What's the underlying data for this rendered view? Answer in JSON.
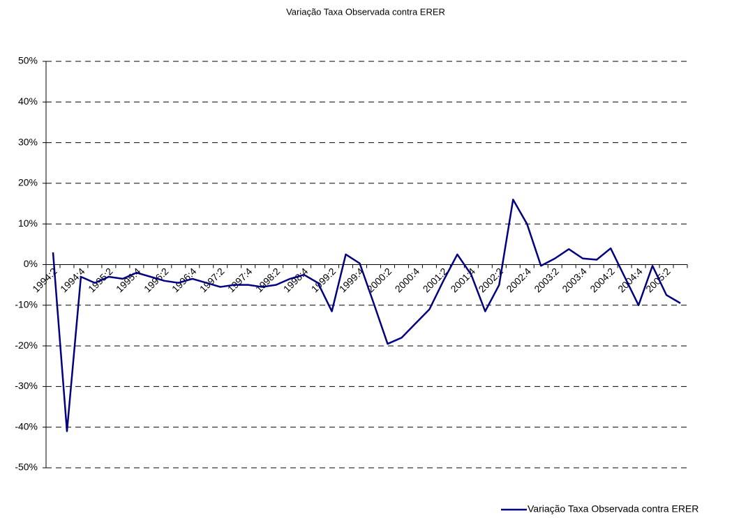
{
  "chart_data": {
    "type": "line",
    "title": "Variação Taxa Observada contra ERER",
    "categories": [
      "1994:2",
      null,
      "1994:4",
      null,
      "1995:2",
      null,
      "1995:4",
      null,
      "1996:2",
      null,
      "1996:4",
      null,
      "1997:2",
      null,
      "1997:4",
      null,
      "1998:2",
      null,
      "1998:4",
      null,
      "1999:2",
      null,
      "1999:4",
      null,
      "2000:2",
      null,
      "2000:4",
      null,
      "2001:2",
      null,
      "2001:4",
      null,
      "2002:2",
      null,
      "2002:4",
      null,
      "2003:2",
      null,
      "2003:4",
      null,
      "2004:2",
      null,
      "2004:4",
      null,
      "2005:2",
      null
    ],
    "series": [
      {
        "name": "Variação Taxa Observada contra ERER",
        "color": "#000080",
        "values": [
          3,
          -41,
          -3,
          -4.5,
          -3,
          -3.5,
          -2,
          -3,
          -4,
          -4.5,
          -3.5,
          -4.5,
          -5.5,
          -5,
          -5,
          -5.5,
          -5,
          -3.5,
          -2.5,
          -4.5,
          -11.5,
          2.5,
          0.3,
          -9.5,
          -19.5,
          -18,
          -14.5,
          -11,
          -4,
          2.5,
          -2.5,
          -11.5,
          -5,
          16,
          10,
          -0.3,
          1.5,
          3.8,
          1.5,
          1.2,
          4,
          -3,
          -10,
          -0.3,
          -7.5,
          -9.5
        ]
      }
    ],
    "ylim": [
      -50,
      50
    ],
    "yticks": [
      {
        "value": -50,
        "label": "-50%"
      },
      {
        "value": -40,
        "label": "-40%"
      },
      {
        "value": -30,
        "label": "-30%"
      },
      {
        "value": -20,
        "label": "-20%"
      },
      {
        "value": -10,
        "label": "-10%"
      },
      {
        "value": 0,
        "label": "0%"
      },
      {
        "value": 10,
        "label": "10%"
      },
      {
        "value": 20,
        "label": "20%"
      },
      {
        "value": 30,
        "label": "30%"
      },
      {
        "value": 40,
        "label": "40%"
      },
      {
        "value": 50,
        "label": "50%"
      }
    ],
    "grid": true,
    "legend": "bottom-right"
  }
}
